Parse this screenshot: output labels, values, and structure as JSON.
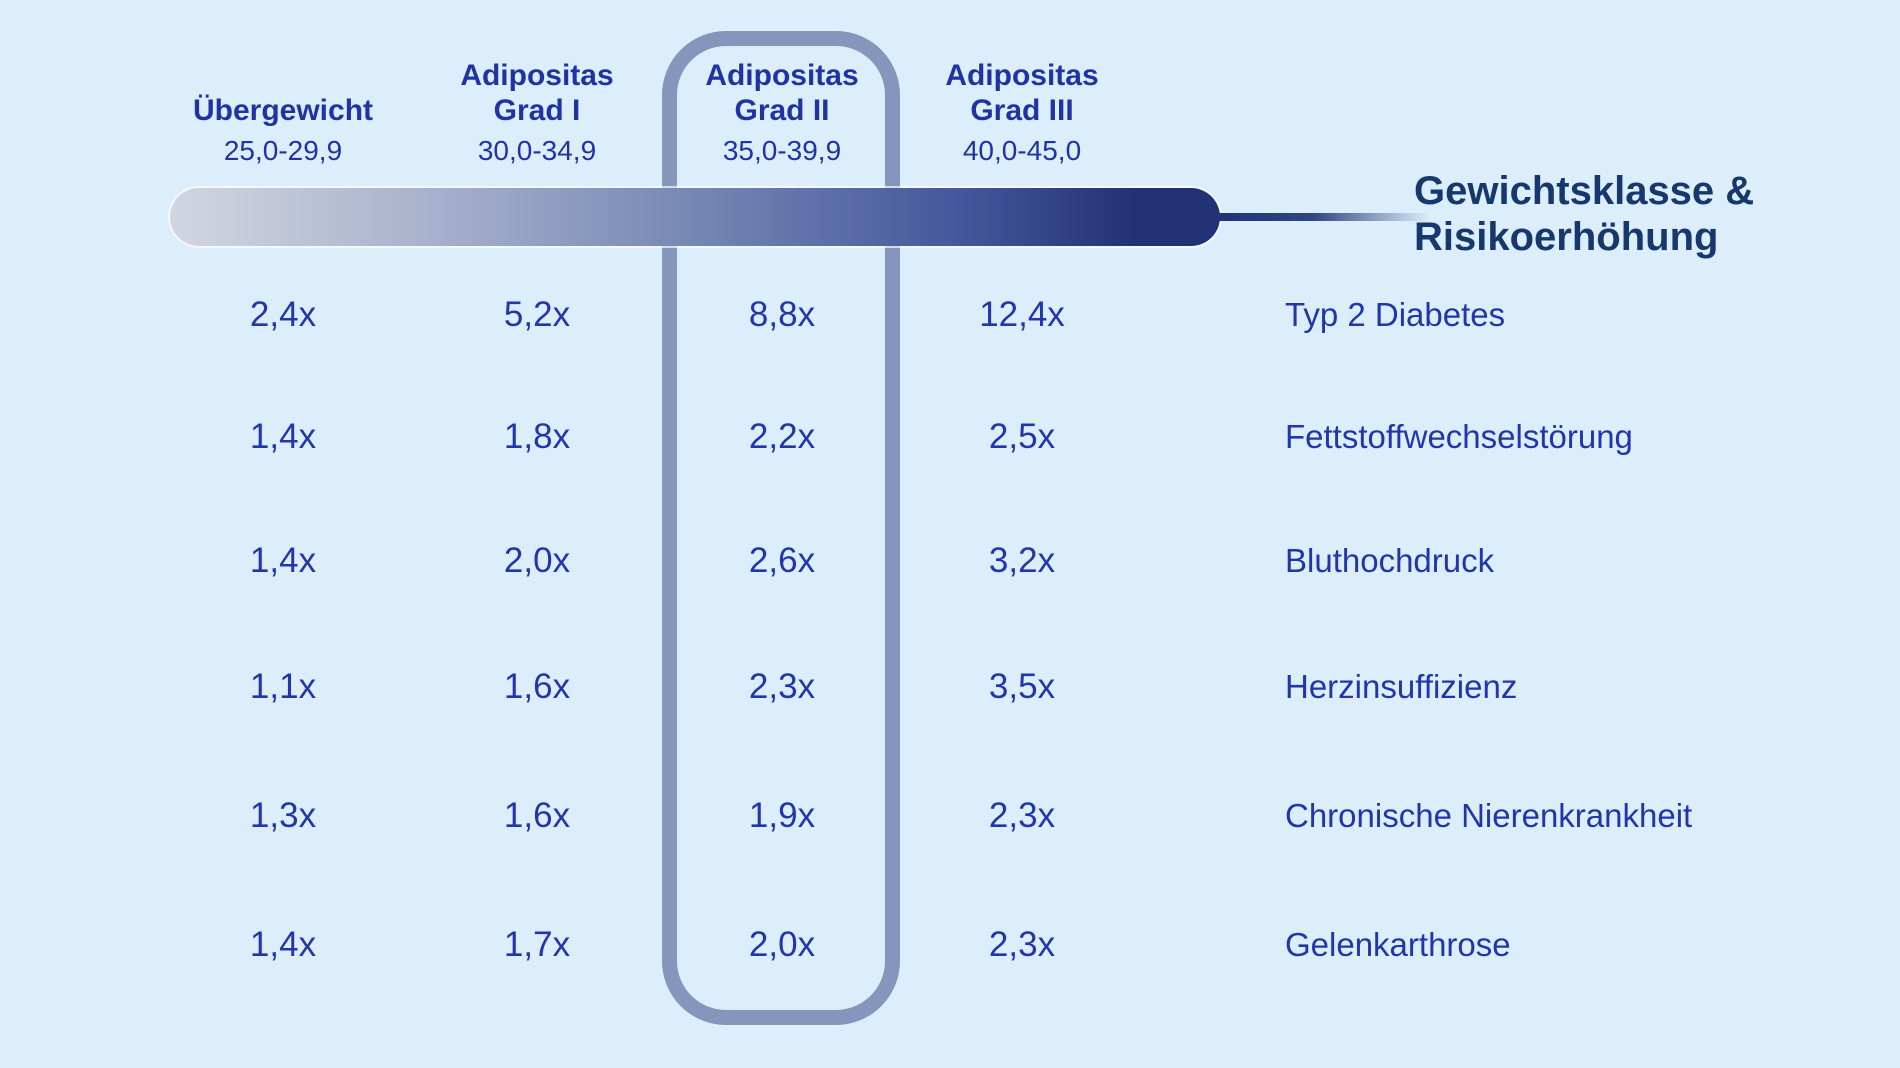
{
  "title": {
    "line1": "Gewichtsklasse &",
    "line2": "Risikoerhöhung"
  },
  "columns": [
    {
      "line1": "",
      "line2": "Übergewicht",
      "range": "25,0-29,9",
      "highlighted": false
    },
    {
      "line1": "Adipositas",
      "line2": "Grad I",
      "range": "30,0-34,9",
      "highlighted": false
    },
    {
      "line1": "Adipositas",
      "line2": "Grad II",
      "range": "35,0-39,9",
      "highlighted": true
    },
    {
      "line1": "Adipositas",
      "line2": "Grad III",
      "range": "40,0-45,0",
      "highlighted": false
    }
  ],
  "rows": [
    {
      "values": [
        "2,4x",
        "5,2x",
        "8,8x",
        "12,4x"
      ],
      "label": "Typ 2 Diabetes"
    },
    {
      "values": [
        "1,4x",
        "1,8x",
        "2,2x",
        "2,5x"
      ],
      "label": "Fettstoffwechselstörung"
    },
    {
      "values": [
        "1,4x",
        "2,0x",
        "2,6x",
        "3,2x"
      ],
      "label": "Bluthochdruck"
    },
    {
      "values": [
        "1,1x",
        "1,6x",
        "2,3x",
        "3,5x"
      ],
      "label": "Herzinsuffizienz"
    },
    {
      "values": [
        "1,3x",
        "1,6x",
        "1,9x",
        "2,3x"
      ],
      "label": "Chronische Nierenkrankheit"
    },
    {
      "values": [
        "1,4x",
        "1,7x",
        "2,0x",
        "2,3x"
      ],
      "label": "Gelenkarthrose"
    }
  ],
  "colors": {
    "background": "#dceefb",
    "text_blue": "#2135ac",
    "title_navy": "#17386d",
    "frame_border": "#8496bc",
    "bar_gradient_start": "#d2d6e1",
    "bar_gradient_end": "#203273"
  },
  "chart_data": {
    "type": "table",
    "title": "Gewichtsklasse & Risikoerhöhung",
    "categories": [
      "Übergewicht (25,0-29,9)",
      "Adipositas Grad I (30,0-34,9)",
      "Adipositas Grad II (35,0-39,9)",
      "Adipositas Grad III (40,0-45,0)"
    ],
    "highlighted_category": "Adipositas Grad II (35,0-39,9)",
    "series": [
      {
        "name": "Typ 2 Diabetes",
        "values": [
          2.4,
          5.2,
          8.8,
          12.4
        ]
      },
      {
        "name": "Fettstoffwechselstörung",
        "values": [
          1.4,
          1.8,
          2.2,
          2.5
        ]
      },
      {
        "name": "Bluthochdruck",
        "values": [
          1.4,
          2.0,
          2.6,
          3.2
        ]
      },
      {
        "name": "Herzinsuffizienz",
        "values": [
          1.1,
          1.6,
          2.3,
          3.5
        ]
      },
      {
        "name": "Chronische Nierenkrankheit",
        "values": [
          1.3,
          1.6,
          1.9,
          2.3
        ]
      },
      {
        "name": "Gelenkarthrose",
        "values": [
          1.4,
          1.7,
          2.0,
          2.3
        ]
      }
    ],
    "unit": "x (Risiko-Multiplikator)",
    "legend_position": "none",
    "grid": false
  }
}
